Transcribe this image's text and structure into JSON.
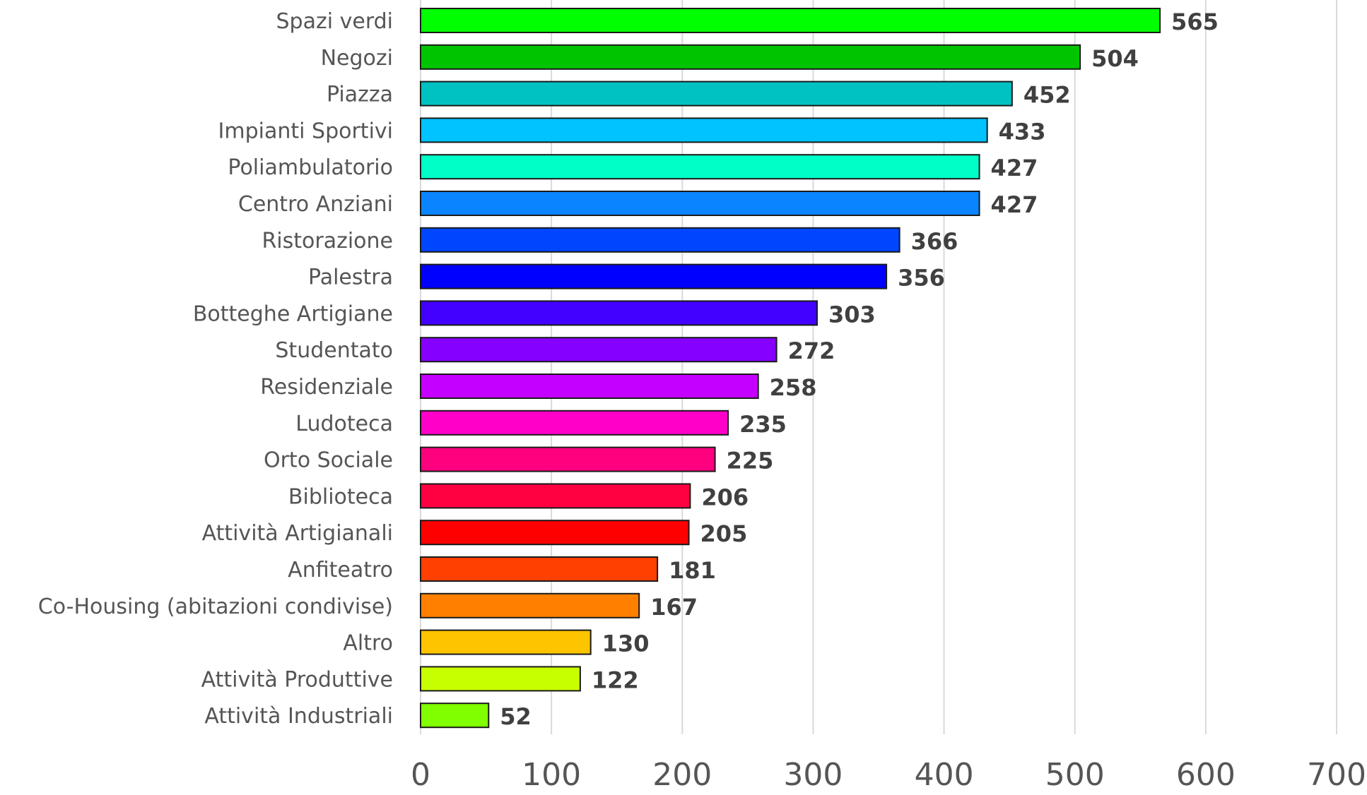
{
  "chart_data": {
    "type": "bar",
    "orientation": "horizontal",
    "title": "",
    "xlabel": "",
    "ylabel": "",
    "xlim": [
      0,
      700
    ],
    "x_ticks": [
      0,
      100,
      200,
      300,
      400,
      500,
      600,
      700
    ],
    "grid": "vertical",
    "legend": "none",
    "categories": [
      "Spazi verdi",
      "Negozi",
      "Piazza",
      "Impianti Sportivi",
      "Poliambulatorio",
      "Centro Anziani",
      "Ristorazione",
      "Palestra",
      "Botteghe Artigiane",
      "Studentato",
      "Residenziale",
      "Ludoteca",
      "Orto Sociale",
      "Biblioteca",
      "Attività Artigianali",
      "Anfiteatro",
      "Co-Housing (abitazioni condivise)",
      "Altro",
      "Attività Produttive",
      "Attività Industriali"
    ],
    "values": [
      565,
      504,
      452,
      433,
      427,
      427,
      366,
      356,
      303,
      272,
      258,
      235,
      225,
      206,
      205,
      181,
      167,
      130,
      122,
      52
    ],
    "colors": [
      "#00ff00",
      "#00c400",
      "#00c2c2",
      "#00c3ff",
      "#00ffc6",
      "#0a84ff",
      "#0046ff",
      "#0000ff",
      "#4200ff",
      "#8500ff",
      "#c400ff",
      "#ff00c8",
      "#ff007f",
      "#ff0040",
      "#ff0000",
      "#ff4000",
      "#ff8000",
      "#ffc400",
      "#c8ff00",
      "#80ff00"
    ],
    "value_labels": [
      "565",
      "504",
      "452",
      "433",
      "427",
      "427",
      "366",
      "356",
      "303",
      "272",
      "258",
      "235",
      "225",
      "206",
      "205",
      "181",
      "167",
      "130",
      "122",
      "52"
    ],
    "tick_labels": [
      "0",
      "100",
      "200",
      "300",
      "400",
      "500",
      "600",
      "700"
    ]
  }
}
